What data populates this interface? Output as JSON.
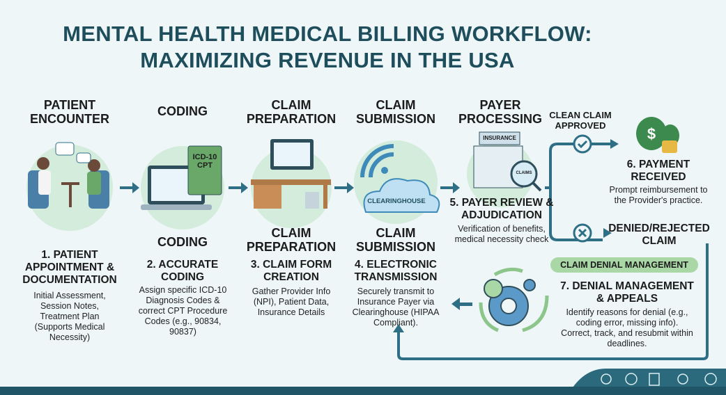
{
  "title": {
    "line1": "MENTAL HEALTH MEDICAL BILLING WORKFLOW:",
    "line2": "MAXIMIZING REVENUE IN THE USA"
  },
  "stages": [
    {
      "header": "PATIENT ENCOUNTER",
      "step": "1. PATIENT APPOINTMENT & DOCUMENTATION",
      "desc": "Initial Assessment, Session Notes, Treatment Plan (Supports Medical Necessity)"
    },
    {
      "header": "CODING",
      "header2": "CODING",
      "step": "2. ACCURATE CODING",
      "desc": "Assign specific ICD-10 Diagnosis Codes & correct CPT Procedure Codes (e.g., 90834, 90837)",
      "book_label": "ICD-10 CPT"
    },
    {
      "header": "CLAIM PREPARATION",
      "header2": "CLAIM PREPARATION",
      "step": "3. CLAIM FORM CREATION",
      "desc": "Gather Provider Info (NPI), Patient Data, Insurance Details"
    },
    {
      "header": "CLAIM SUBMISSION",
      "header2": "CLAIM SUBMISSION",
      "step": "4. ELECTRONIC TRANSMISSION",
      "desc": "Securely transmit to Insurance Payer via Clearinghouse (HIPAA Compliant).",
      "cloud_label": "CLEARINGHOUSE"
    },
    {
      "header": "PAYER PROCESSING",
      "step": "5. PAYER REVIEW & ADJUDICATION",
      "desc": "Verification of benefits, medical necessity check",
      "building_label": "INSURANCE",
      "lens_label": "CLAIMS"
    }
  ],
  "approved": {
    "label": "CLEAN CLAIM APPROVED",
    "step": "6. PAYMENT RECEIVED",
    "desc": "Prompt reimbursement to the Provider's practice."
  },
  "denied": {
    "label": "DENIED/REJECTED CLAIM",
    "pill": "CLAIM DENIAL MANAGEMENT",
    "step": "7. DENIAL MANAGEMENT & APPEALS",
    "desc": "Identify reasons for denial (e.g., coding error, missing info). Correct, track, and resubmit within deadlines."
  },
  "colors": {
    "title": "#1e4d5c",
    "arrow": "#2f6f86",
    "green": "#a9d8a6",
    "band": "#1f5566"
  }
}
